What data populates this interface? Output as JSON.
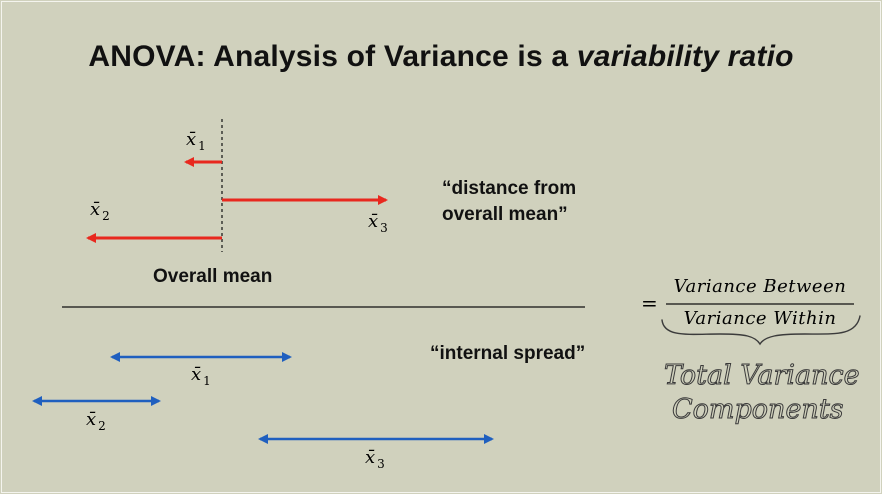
{
  "title": {
    "prefix": "ANOVA: Analysis of Variance is a ",
    "emphasis": "variability ratio"
  },
  "means_diagram": {
    "x1_label": "x̄",
    "x1_sub": "1",
    "x2_label": "x̄",
    "x2_sub": "2",
    "x3_label": "x̄",
    "x3_sub": "3",
    "mean_line_label": "Overall mean",
    "between_caption_line1": "“distance from",
    "between_caption_line2": "overall mean”"
  },
  "spread_diagram": {
    "x1_label": "x̄",
    "x1_sub": "1",
    "x2_label": "x̄",
    "x2_sub": "2",
    "x3_label": "x̄",
    "x3_sub": "3",
    "within_caption": "“internal spread”"
  },
  "ratio": {
    "equals": "=",
    "numerator": "Variance Between",
    "denominator": "Variance Within"
  },
  "handwritten_note": {
    "line1": "Total Variance",
    "line2": "Components"
  },
  "colors": {
    "background": "#d0d1bd",
    "between_arrows": "#e8281e",
    "within_arrows": "#1f5fbf",
    "ink": "#111111",
    "handwriting": "#3b3b3b"
  }
}
